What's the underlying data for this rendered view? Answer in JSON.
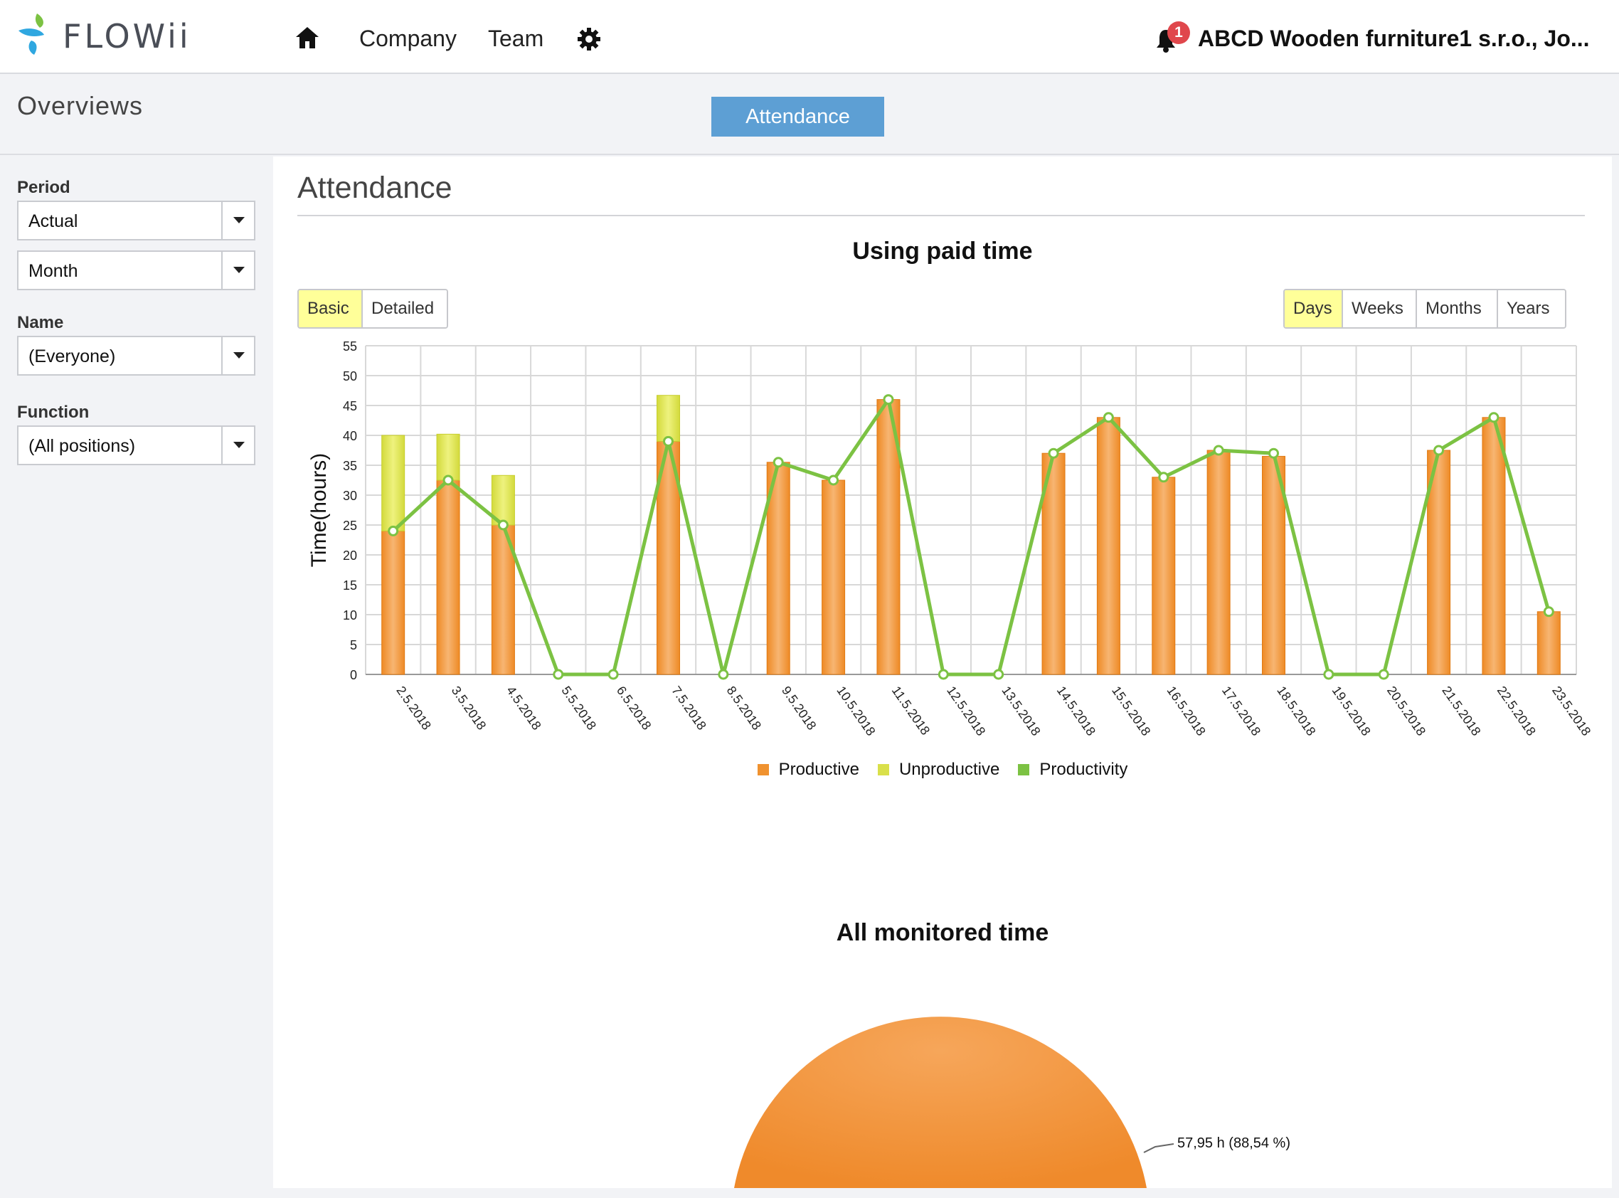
{
  "header": {
    "logo_text": "FLOWii",
    "nav": {
      "company": "Company",
      "team": "Team"
    },
    "icons": [
      "home-icon",
      "gear-icon",
      "bell-icon"
    ],
    "notification_count": "1",
    "company_name": "ABCD Wooden furniture1 s.r.o., Jo..."
  },
  "subheader": {
    "title": "Overviews",
    "tab_attendance": "Attendance"
  },
  "filters": {
    "period_label": "Period",
    "period_value": "Actual",
    "range_value": "Month",
    "name_label": "Name",
    "name_value": "(Everyone)",
    "function_label": "Function",
    "function_value": "(All positions)"
  },
  "main": {
    "title": "Attendance",
    "chart1_title": "Using paid time",
    "view_buttons": [
      "Basic",
      "Detailed"
    ],
    "view_active": "Basic",
    "period_buttons": [
      "Days",
      "Weeks",
      "Months",
      "Years"
    ],
    "period_active": "Days",
    "chart2_title": "All monitored time",
    "pie_label": "57,95 h (88,54 %)"
  },
  "colors": {
    "productive": "#f0922f",
    "unproductive": "#d9e04a",
    "productivity": "#7cc243",
    "accent": "#5d9fd4"
  },
  "chart_data": [
    {
      "type": "bar",
      "title": "Using paid time",
      "ylabel": "Time(hours)",
      "ylim": [
        0,
        55
      ],
      "yticks": [
        0,
        5,
        10,
        15,
        20,
        25,
        30,
        35,
        40,
        45,
        50,
        55
      ],
      "grid": true,
      "stacked": true,
      "legend_position": "bottom",
      "categories": [
        "2.5.2018",
        "3.5.2018",
        "4.5.2018",
        "5.5.2018",
        "6.5.2018",
        "7.5.2018",
        "8.5.2018",
        "9.5.2018",
        "10.5.2018",
        "11.5.2018",
        "12.5.2018",
        "13.5.2018",
        "14.5.2018",
        "15.5.2018",
        "16.5.2018",
        "17.5.2018",
        "18.5.2018",
        "19.5.2018",
        "20.5.2018",
        "21.5.2018",
        "22.5.2018",
        "23.5.2018"
      ],
      "series": [
        {
          "name": "Productive",
          "kind": "bar",
          "values": [
            24,
            32.5,
            25,
            0,
            0,
            39,
            0,
            35.5,
            32.5,
            46,
            0,
            0,
            37,
            43,
            33,
            37.5,
            36.5,
            0,
            0,
            37.5,
            43,
            10.5
          ]
        },
        {
          "name": "Unproductive",
          "kind": "bar",
          "values": [
            16,
            7.7,
            8.3,
            0,
            0,
            7.7,
            0,
            0,
            0,
            0,
            0,
            0,
            0,
            0,
            0,
            0,
            0,
            0,
            0,
            0,
            0,
            0
          ]
        },
        {
          "name": "Productivity",
          "kind": "line",
          "values": [
            24,
            32.5,
            25,
            0,
            0,
            39,
            0,
            35.5,
            32.5,
            46,
            0,
            0,
            37,
            43,
            33,
            37.5,
            37,
            0,
            0,
            37.5,
            43,
            10.5
          ]
        }
      ]
    },
    {
      "type": "pie",
      "title": "All monitored time",
      "slices": [
        {
          "value": 57.95,
          "percent": 88.54,
          "label": "57,95 h (88,54 %)"
        }
      ]
    }
  ]
}
